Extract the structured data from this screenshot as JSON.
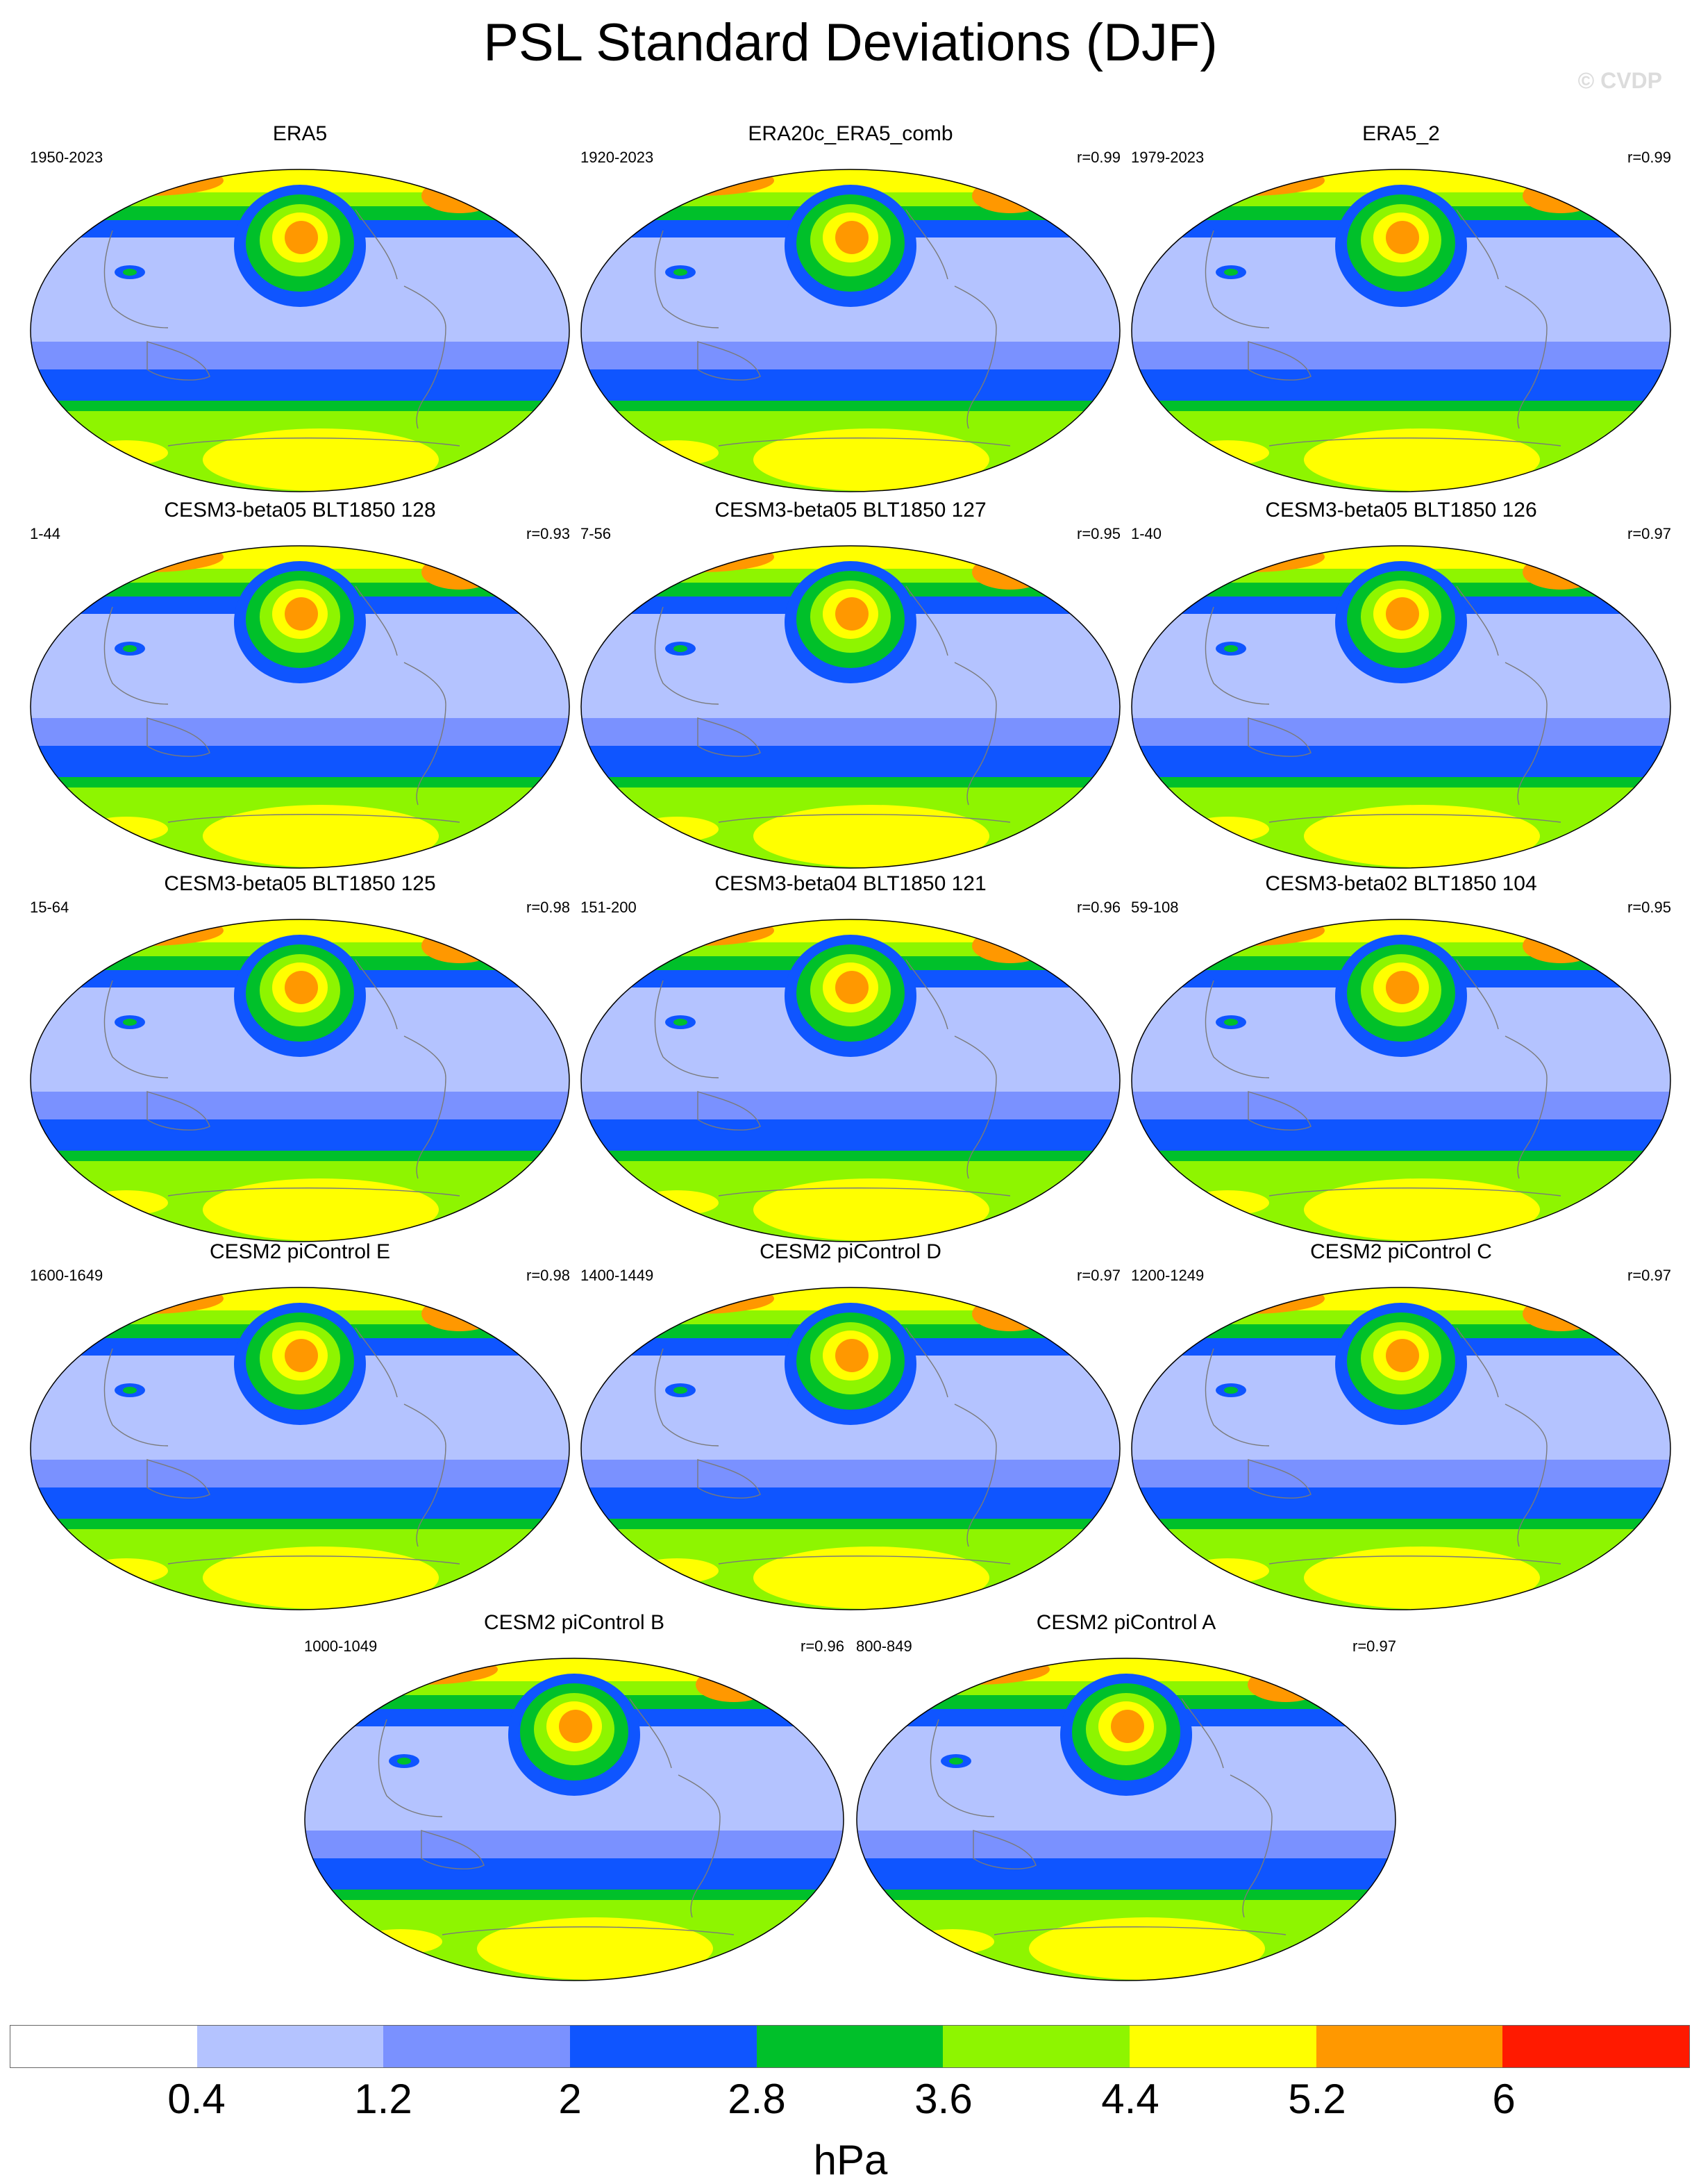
{
  "title": "PSL Standard Deviations (DJF)",
  "watermark": "© CVDP",
  "colorbar": {
    "colors": [
      "#ffffff",
      "#b4c3ff",
      "#7a91ff",
      "#0f55ff",
      "#00c02a",
      "#8ef500",
      "#ffff00",
      "#ff9800",
      "#ff1a00"
    ],
    "labels": [
      "0.4",
      "1.2",
      "2",
      "2.8",
      "3.6",
      "4.4",
      "5.2",
      "6"
    ],
    "units": "hPa"
  },
  "panels": [
    {
      "title": "ERA5",
      "period": "1950-2023",
      "r": ""
    },
    {
      "title": "ERA20c_ERA5_comb",
      "period": "1920-2023",
      "r": "r=0.99"
    },
    {
      "title": "ERA5_2",
      "period": "1979-2023",
      "r": "r=0.99"
    },
    {
      "title": "CESM3-beta05 BLT1850 128",
      "period": "1-44",
      "r": "r=0.93"
    },
    {
      "title": "CESM3-beta05 BLT1850 127",
      "period": "7-56",
      "r": "r=0.95"
    },
    {
      "title": "CESM3-beta05 BLT1850 126",
      "period": "1-40",
      "r": "r=0.97"
    },
    {
      "title": "CESM3-beta05 BLT1850 125",
      "period": "15-64",
      "r": "r=0.98"
    },
    {
      "title": "CESM3-beta04 BLT1850 121",
      "period": "151-200",
      "r": "r=0.96"
    },
    {
      "title": "CESM3-beta02 BLT1850 104",
      "period": "59-108",
      "r": "r=0.95"
    },
    {
      "title": "CESM2 piControl E",
      "period": "1600-1649",
      "r": "r=0.98"
    },
    {
      "title": "CESM2 piControl D",
      "period": "1400-1449",
      "r": "r=0.97"
    },
    {
      "title": "CESM2 piControl C",
      "period": "1200-1249",
      "r": "r=0.97"
    },
    {
      "title": "CESM2 piControl B",
      "period": "1000-1049",
      "r": "r=0.96"
    },
    {
      "title": "CESM2 piControl A",
      "period": "800-849",
      "r": "r=0.97"
    }
  ]
}
